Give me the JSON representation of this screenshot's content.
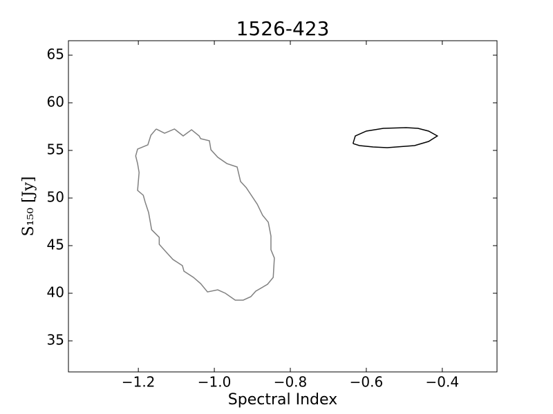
{
  "chart_data": {
    "type": "line",
    "title": "1526-423",
    "xlabel": "Spectral Index",
    "ylabel": "S₁₅₀ [Jy]",
    "xlim": [
      -1.384,
      -0.256
    ],
    "ylim": [
      31.74,
      66.52
    ],
    "xticks": [
      {
        "value": -1.2,
        "label": "−1.2"
      },
      {
        "value": -1.0,
        "label": "−1.0"
      },
      {
        "value": -0.8,
        "label": "−0.8"
      },
      {
        "value": -0.6,
        "label": "−0.6"
      },
      {
        "value": -0.4,
        "label": "−0.4"
      }
    ],
    "yticks": [
      35,
      40,
      45,
      50,
      55,
      60,
      65
    ],
    "grid": false,
    "series": [
      {
        "color": "#808080",
        "x": [
          -1.153,
          -1.131,
          -1.105,
          -1.082,
          -1.06,
          -1.04,
          -1.036,
          -1.013,
          -1.009,
          -0.991,
          -0.967,
          -0.94,
          -0.931,
          -0.916,
          -0.887,
          -0.873,
          -0.858,
          -0.851,
          -0.851,
          -0.842,
          -0.845,
          -0.86,
          -0.891,
          -0.904,
          -0.924,
          -0.945,
          -0.971,
          -0.991,
          -1.018,
          -1.036,
          -1.055,
          -1.08,
          -1.084,
          -1.109,
          -1.124,
          -1.145,
          -1.145,
          -1.165,
          -1.173,
          -1.182,
          -1.187,
          -1.202,
          -1.198,
          -1.202,
          -1.207,
          -1.202,
          -1.175,
          -1.167,
          -1.153
        ],
        "values": [
          57.25,
          56.81,
          57.25,
          56.52,
          57.17,
          56.52,
          56.23,
          56.01,
          55.07,
          54.28,
          53.62,
          53.26,
          51.74,
          51.09,
          49.35,
          48.19,
          47.46,
          46.01,
          44.57,
          43.7,
          41.67,
          40.94,
          40.22,
          39.64,
          39.28,
          39.28,
          40.0,
          40.36,
          40.14,
          41.01,
          41.67,
          42.32,
          42.9,
          43.55,
          44.2,
          45.14,
          45.87,
          46.67,
          48.48,
          49.57,
          50.29,
          50.8,
          52.68,
          53.62,
          54.42,
          55.14,
          55.58,
          56.59,
          57.25
        ]
      },
      {
        "color": "#000000",
        "x": [
          -0.635,
          -0.629,
          -0.6,
          -0.555,
          -0.495,
          -0.464,
          -0.436,
          -0.413,
          -0.436,
          -0.473,
          -0.545,
          -0.582,
          -0.618,
          -0.635
        ],
        "values": [
          55.72,
          56.52,
          57.03,
          57.32,
          57.39,
          57.32,
          57.03,
          56.52,
          55.94,
          55.51,
          55.29,
          55.36,
          55.51,
          55.72
        ]
      }
    ]
  }
}
